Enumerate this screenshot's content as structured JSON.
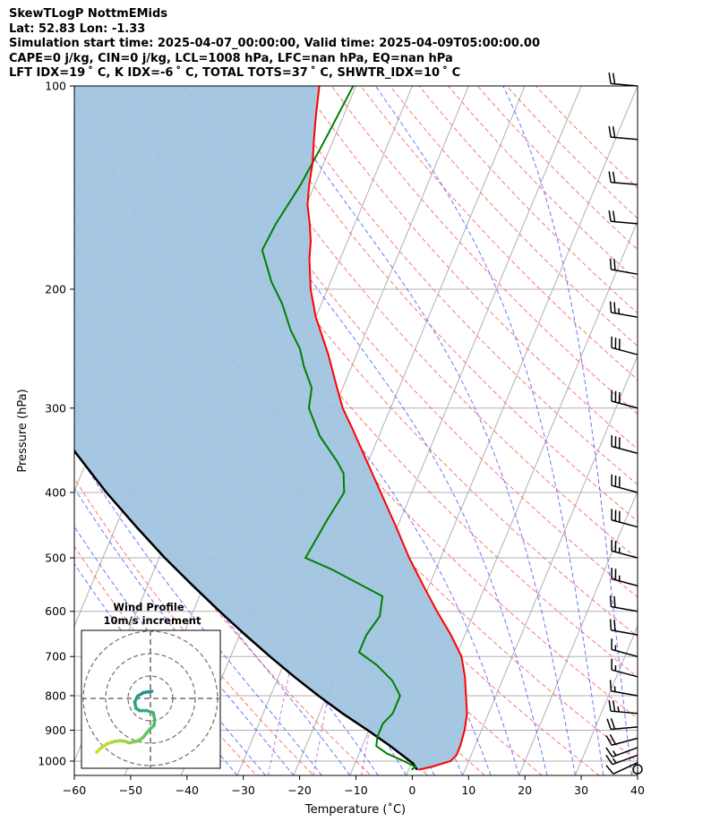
{
  "header": {
    "line1": "SkewTLogP NottmEMids",
    "line2": "Lat: 52.83   Lon: -1.33",
    "line3": "Simulation start time: 2025-04-07_00:00:00, Valid time: 2025-04-09T05:00:00.00",
    "line4": "CAPE=0 j/kg, CIN=0 j/kg, LCL=1008 hPa, LFC=nan hPa, EQ=nan hPa",
    "line5": "LFT IDX=19 ˚ C, K IDX=-6 ˚ C, TOTAL TOTS=37 ˚ C, SHWTR_IDX=10 ˚ C"
  },
  "colors": {
    "temperature": "#ff0000",
    "dewpoint": "#008000",
    "parcel": "#000000",
    "shade": "#a0c4e0",
    "dry_adiabat": "#ff6666",
    "moist_adiabat": "#5a5aff",
    "mixing_ratio": "#9b30c8",
    "isotherm": "#b0b0b0",
    "grid": "#b0b0b0"
  },
  "chart_data": [
    {
      "type": "line",
      "title": "SkewTLogP NottmEMids",
      "xlabel": "Temperature (˚C)",
      "ylabel": "Pressure (hPa)",
      "xlim": [
        -60,
        40
      ],
      "ylim": [
        1050,
        100
      ],
      "x_ticks": [
        -60,
        -50,
        -40,
        -30,
        -20,
        -10,
        0,
        10,
        20,
        30,
        40
      ],
      "x_tick_labels": [
        "−60",
        "−50",
        "−40",
        "−30",
        "−20",
        "−10",
        "0",
        "10",
        "20",
        "30",
        "40"
      ],
      "y_ticks": [
        1000,
        900,
        800,
        700,
        600,
        500,
        400,
        300,
        200,
        100
      ],
      "y_tick_labels": [
        "1000",
        "900",
        "800",
        "700",
        "600",
        "500",
        "400",
        "300",
        "200",
        "100"
      ],
      "skew": "x_at_100hPa_shift_+50C",
      "series": [
        {
          "name": "Temperature",
          "pressure": [
            1030,
            1020,
            1000,
            980,
            950,
            900,
            850,
            800,
            750,
            700,
            650,
            600,
            550,
            500,
            450,
            400,
            370,
            350,
            320,
            300,
            280,
            250,
            220,
            200,
            180,
            170,
            160,
            150,
            140,
            130,
            120,
            110,
            100
          ],
          "values": [
            1.7,
            3.8,
            6.8,
            7.4,
            7.4,
            7.0,
            6.2,
            4.7,
            3.1,
            1.0,
            -2.5,
            -6.7,
            -11.0,
            -15.6,
            -20.2,
            -25.5,
            -29.0,
            -31.5,
            -35.5,
            -38.5,
            -41.0,
            -45.0,
            -50.0,
            -53.0,
            -55.5,
            -56.5,
            -58.0,
            -59.8,
            -61.0,
            -62.0,
            -63.5,
            -65.0,
            -66.5
          ]
        },
        {
          "name": "Dewpoint",
          "pressure": [
            1030,
            1020,
            1000,
            975,
            950,
            920,
            880,
            850,
            800,
            760,
            720,
            690,
            650,
            610,
            570,
            520,
            500,
            470,
            440,
            400,
            375,
            360,
            330,
            300,
            280,
            260,
            245,
            230,
            210,
            195,
            175,
            160,
            140,
            120,
            100
          ],
          "values": [
            0.5,
            1.0,
            -1.5,
            -5.0,
            -7.5,
            -8.0,
            -8.0,
            -7.0,
            -7.0,
            -9.5,
            -13.5,
            -17.5,
            -17.5,
            -16.5,
            -17.5,
            -28.5,
            -34.0,
            -33.5,
            -33.0,
            -32.0,
            -33.5,
            -35.5,
            -40.5,
            -44.5,
            -45.5,
            -48.5,
            -50.5,
            -53.5,
            -57.0,
            -60.5,
            -64.5,
            -64.0,
            -62.5,
            -61.5,
            -60.5
          ]
        },
        {
          "name": "Parcel",
          "pressure": [
            1030,
            1008,
            950,
            900,
            850,
            800,
            750,
            700,
            650,
            600,
            550,
            500,
            450,
            400,
            350,
            300,
            250,
            200,
            150,
            100
          ],
          "values": [
            1.5,
            0.3,
            -5.0,
            -10.2,
            -15.9,
            -21.5,
            -27.2,
            -33.0,
            -39.0,
            -45.3,
            -51.9,
            -59.0,
            -66.3,
            -74.2,
            -82.5,
            -91.6,
            -101.7,
            -113.1,
            -126.4,
            -143.0
          ]
        }
      ],
      "wind_barbs": {
        "pressure": [
          1028,
          1005,
          980,
          955,
          925,
          890,
          850,
          800,
          750,
          700,
          650,
          600,
          550,
          500,
          450,
          400,
          350,
          300,
          250,
          220,
          190,
          160,
          140,
          120,
          100
        ],
        "speed_kt": [
          0,
          10,
          15,
          15,
          20,
          20,
          25,
          15,
          15,
          15,
          20,
          20,
          25,
          25,
          30,
          30,
          30,
          30,
          30,
          25,
          20,
          20,
          20,
          20,
          20
        ],
        "direction_deg": [
          0,
          245,
          250,
          250,
          255,
          265,
          275,
          280,
          285,
          285,
          280,
          280,
          285,
          285,
          285,
          285,
          285,
          285,
          285,
          280,
          280,
          275,
          275,
          275,
          275
        ]
      },
      "calm_marker": true
    },
    {
      "type": "scatter",
      "title": "Wind Profile",
      "subtitle": "10m/s increment",
      "ring_count": 3,
      "hodograph": {
        "u": [
          -7.5,
          -7.0,
          -6.0,
          -5.0,
          -4.2,
          -3.5,
          -3.0,
          -2.5,
          -2.0,
          -1.5,
          -1.0,
          -0.5,
          0.0,
          0.5,
          0.6,
          0.4,
          -0.5,
          -1.5,
          -2.0,
          -2.2,
          -1.8,
          -1.0,
          0.2
        ],
        "v": [
          -7.5,
          -7.0,
          -6.3,
          -6.0,
          -5.9,
          -6.0,
          -6.2,
          -6.1,
          -6.0,
          -5.8,
          -5.4,
          -4.8,
          -4.2,
          -3.8,
          -3.0,
          -2.0,
          -1.7,
          -1.7,
          -1.4,
          -0.5,
          0.3,
          0.8,
          1.0
        ]
      }
    }
  ]
}
